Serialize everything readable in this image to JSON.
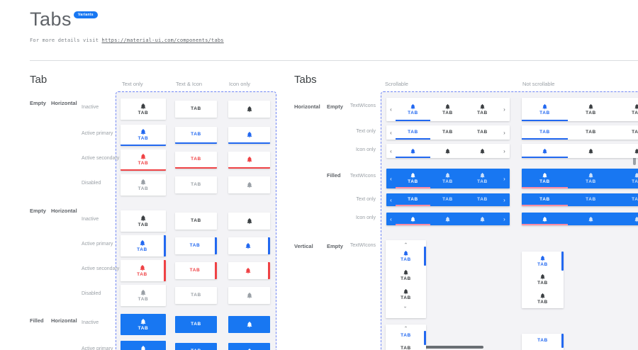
{
  "header": {
    "title": "Tabs",
    "badge": "Variants",
    "intro_prefix": "For more details visit ",
    "link_text": "https://material-ui.com/components/tabs"
  },
  "tab_label": "TAB",
  "icons": {
    "tab_icon": "bell-icon",
    "scroll_prev": "chevron-left-icon",
    "scroll_next": "chevron-right-icon",
    "scroll_up": "chevron-up-icon",
    "scroll_down": "chevron-down-icon"
  },
  "colors": {
    "primary_blue": "#2268F0",
    "filled_blue": "#1877F2",
    "secondary_red": "#EF4245",
    "filled_active_underline": "#FF8CA3",
    "inactive": "#3C4043",
    "disabled": "#9AA0A6",
    "dashed_border": "#7086F5",
    "panel_bg": "#F3F3F6"
  },
  "left": {
    "heading": "Tab",
    "columns": [
      "Text only",
      "Text & Icon",
      "Icon only"
    ],
    "groups": [
      {
        "fill": "Empty",
        "orientation": "Horizontal",
        "indicator": "bottom",
        "rows": [
          {
            "state": "Inactive",
            "variant": "inactive"
          },
          {
            "state": "Active primary",
            "variant": "primary"
          },
          {
            "state": "Active secondary",
            "variant": "secondary"
          },
          {
            "state": "Disabled",
            "variant": "disabled"
          }
        ]
      },
      {
        "fill": "Empty",
        "orientation": "Horizontal",
        "indicator": "right",
        "rows": [
          {
            "state": "Inactive",
            "variant": "inactive"
          },
          {
            "state": "Active primary",
            "variant": "primary"
          },
          {
            "state": "Active secondary",
            "variant": "secondary"
          },
          {
            "state": "Disabled",
            "variant": "disabled"
          }
        ]
      },
      {
        "fill": "Filled",
        "orientation": "Horizontal",
        "indicator": "none",
        "rows": [
          {
            "state": "Inactive",
            "variant": "filled"
          },
          {
            "state": "Active primary",
            "variant": "filled"
          }
        ]
      }
    ]
  },
  "right": {
    "heading": "Tabs",
    "columns": [
      "Scrollable",
      "Not scrollable"
    ],
    "sections": [
      {
        "orientation": "Horizontal",
        "fill": "Empty",
        "rows": [
          "TextWIcons",
          "Text only",
          "Icon only"
        ]
      },
      {
        "fill": "Filled",
        "rows": [
          "TextWIcons",
          "Text only",
          "Icon only"
        ]
      },
      {
        "orientation": "Vertical",
        "fill": "Empty",
        "rows": [
          "TextWIcons"
        ]
      }
    ]
  }
}
